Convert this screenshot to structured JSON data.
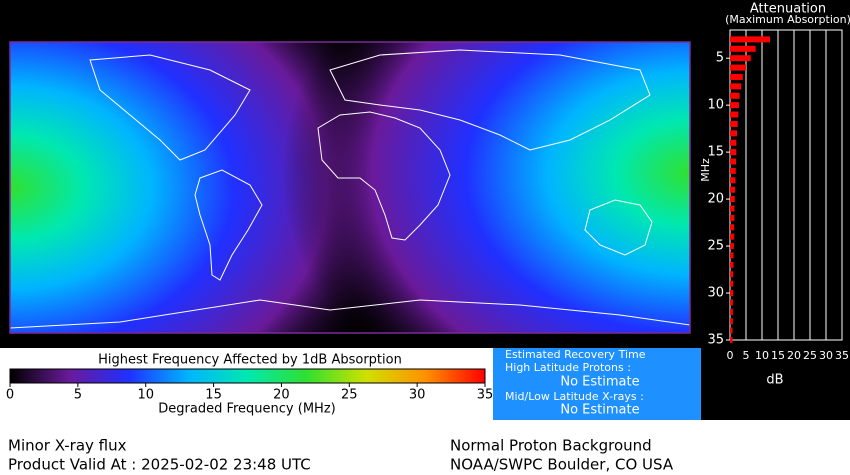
{
  "chart_data": {
    "type": "bar",
    "orientation": "horizontal",
    "title": "Attenuation",
    "subtitle": "(Maximum Absorption)",
    "ylabel": "MHz",
    "xlabel": "dB",
    "y": [
      3,
      4,
      5,
      6,
      7,
      8,
      9,
      10,
      11,
      12,
      13,
      14,
      15,
      16,
      17,
      18,
      19,
      20,
      21,
      22,
      23,
      24,
      25,
      26,
      27,
      28,
      29,
      30,
      31,
      32,
      33,
      34,
      35
    ],
    "values": [
      12.5,
      8,
      6.5,
      5,
      4,
      3.5,
      3,
      2.8,
      2.6,
      2.4,
      2.2,
      2,
      2,
      1.9,
      1.8,
      1.7,
      1.6,
      1.5,
      1.4,
      1.4,
      1.3,
      1.3,
      1.2,
      1.1,
      1.1,
      1,
      1,
      1,
      0.9,
      0.9,
      0.9,
      0.8,
      0.8
    ],
    "color": "#ff0000",
    "ylim": [
      2,
      35
    ],
    "yticks": [
      5,
      10,
      15,
      20,
      25,
      30,
      35
    ],
    "xlim": [
      0,
      35
    ],
    "xticks": [
      0,
      5,
      10,
      15,
      20,
      25,
      30,
      35
    ],
    "grid": true
  },
  "colorbar": {
    "title": "Highest Frequency Affected by 1dB Absorption",
    "xlabel": "Degraded Frequency (MHz)",
    "xlim": [
      0,
      35
    ],
    "xticks": [
      0,
      5,
      10,
      15,
      20,
      25,
      30,
      35
    ],
    "colors": [
      "#000000",
      "#6a1a9a",
      "#2030ff",
      "#00b4ff",
      "#00e8b0",
      "#30e030",
      "#d0e000",
      "#ff9000",
      "#ff0000"
    ]
  },
  "recovery": {
    "title": "Estimated Recovery Time",
    "high_latitude_label": "High Latitude Protons :",
    "high_latitude_value": "No Estimate",
    "mid_low_label": "Mid/Low Latitude X-rays :",
    "mid_low_value": "No Estimate"
  },
  "footer": {
    "status": "Minor X-ray flux",
    "valid": "Product Valid At : 2025-02-02 23:48 UTC",
    "proton": "Normal Proton Background",
    "source": "NOAA/SWPC Boulder, CO USA"
  }
}
